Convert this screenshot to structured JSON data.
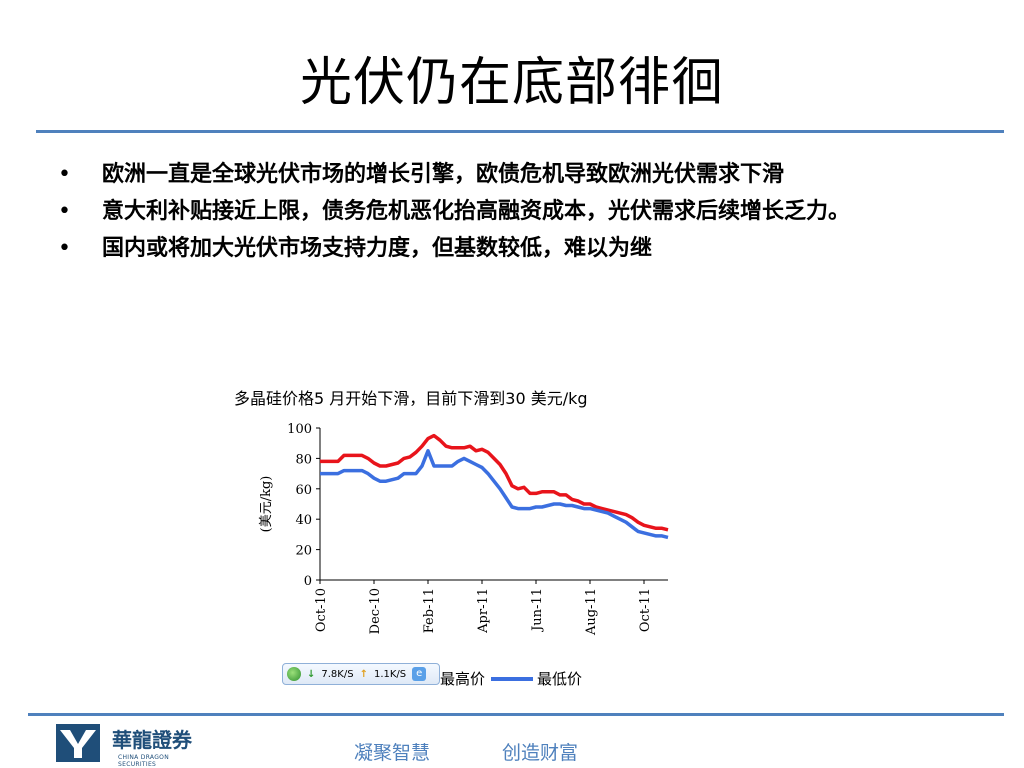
{
  "slide": {
    "title": "光伏仍在底部徘徊",
    "bullets": [
      "欧洲一直是全球光伏市场的增长引擎，欧债危机导致欧洲光伏需求下滑",
      "意大利补贴接近上限，债务危机恶化抬高融资成本，光伏需求后续增长乏力。",
      "国内或将加大光伏市场支持力度，但基数较低，难以为继"
    ],
    "bullet_symbol": "•",
    "footer": {
      "logo_cn": "華龍證券",
      "logo_en": "CHINA DRAGON SECURITIES",
      "slogan_left": "凝聚智慧",
      "slogan_right": "创造财富"
    },
    "overlay_widget": {
      "down_speed": "7.8K/S",
      "up_speed": "1.1K/S"
    },
    "colors": {
      "accent": "#4f81bd",
      "high_series": "#e8141b",
      "low_series": "#3b6fe0"
    }
  },
  "chart_data": {
    "type": "line",
    "title": "多晶硅价格5 月开始下滑，目前下滑到30 美元/kg",
    "ylabel": "(美元/kg)",
    "ylim": [
      0,
      100
    ],
    "yticks": [
      0,
      20,
      40,
      60,
      80,
      100
    ],
    "x_tick_labels": [
      "Oct-10",
      "Dec-10",
      "Feb-11",
      "Apr-11",
      "Jun-11",
      "Aug-11",
      "Oct-11"
    ],
    "x_tick_weeks": [
      0,
      9,
      18,
      27,
      36,
      45,
      54
    ],
    "x_range_weeks": [
      0,
      58
    ],
    "series": [
      {
        "name": "最高价",
        "weeks": [
          0,
          3,
          4,
          7,
          8,
          9,
          10,
          11,
          12,
          13,
          14,
          15,
          16,
          17,
          18,
          19,
          20,
          21,
          22,
          23,
          24,
          25,
          26,
          27,
          28,
          29,
          30,
          31,
          32,
          33,
          34,
          35,
          36,
          37,
          38,
          39,
          40,
          41,
          42,
          43,
          44,
          45,
          46,
          47,
          48,
          49,
          50,
          51,
          52,
          53,
          54,
          55,
          56,
          57,
          58
        ],
        "values": [
          78,
          78,
          82,
          82,
          80,
          77,
          75,
          75,
          76,
          77,
          80,
          81,
          84,
          88,
          93,
          95,
          92,
          88,
          87,
          87,
          87,
          88,
          85,
          86,
          84,
          80,
          76,
          70,
          62,
          60,
          61,
          57,
          57,
          58,
          58,
          58,
          56,
          56,
          53,
          52,
          50,
          50,
          48,
          47,
          46,
          45,
          44,
          43,
          41,
          38,
          36,
          35,
          34,
          34,
          33
        ]
      },
      {
        "name": "最低价",
        "weeks": [
          0,
          3,
          4,
          7,
          8,
          9,
          10,
          11,
          12,
          13,
          14,
          15,
          16,
          17,
          18,
          19,
          20,
          21,
          22,
          23,
          24,
          25,
          26,
          27,
          28,
          29,
          30,
          31,
          32,
          33,
          34,
          35,
          36,
          37,
          38,
          39,
          40,
          41,
          42,
          43,
          44,
          45,
          46,
          47,
          48,
          49,
          50,
          51,
          52,
          53,
          54,
          55,
          56,
          57,
          58
        ],
        "values": [
          70,
          70,
          72,
          72,
          70,
          67,
          65,
          65,
          66,
          67,
          70,
          70,
          70,
          75,
          85,
          75,
          75,
          75,
          75,
          78,
          80,
          78,
          76,
          74,
          70,
          65,
          60,
          54,
          48,
          47,
          47,
          47,
          48,
          48,
          49,
          50,
          50,
          49,
          49,
          48,
          47,
          47,
          46,
          45,
          44,
          42,
          40,
          38,
          35,
          32,
          31,
          30,
          29,
          29,
          28
        ]
      }
    ],
    "legend": [
      "最高价",
      "最低价"
    ],
    "legend_position": "bottom",
    "grid": false
  }
}
